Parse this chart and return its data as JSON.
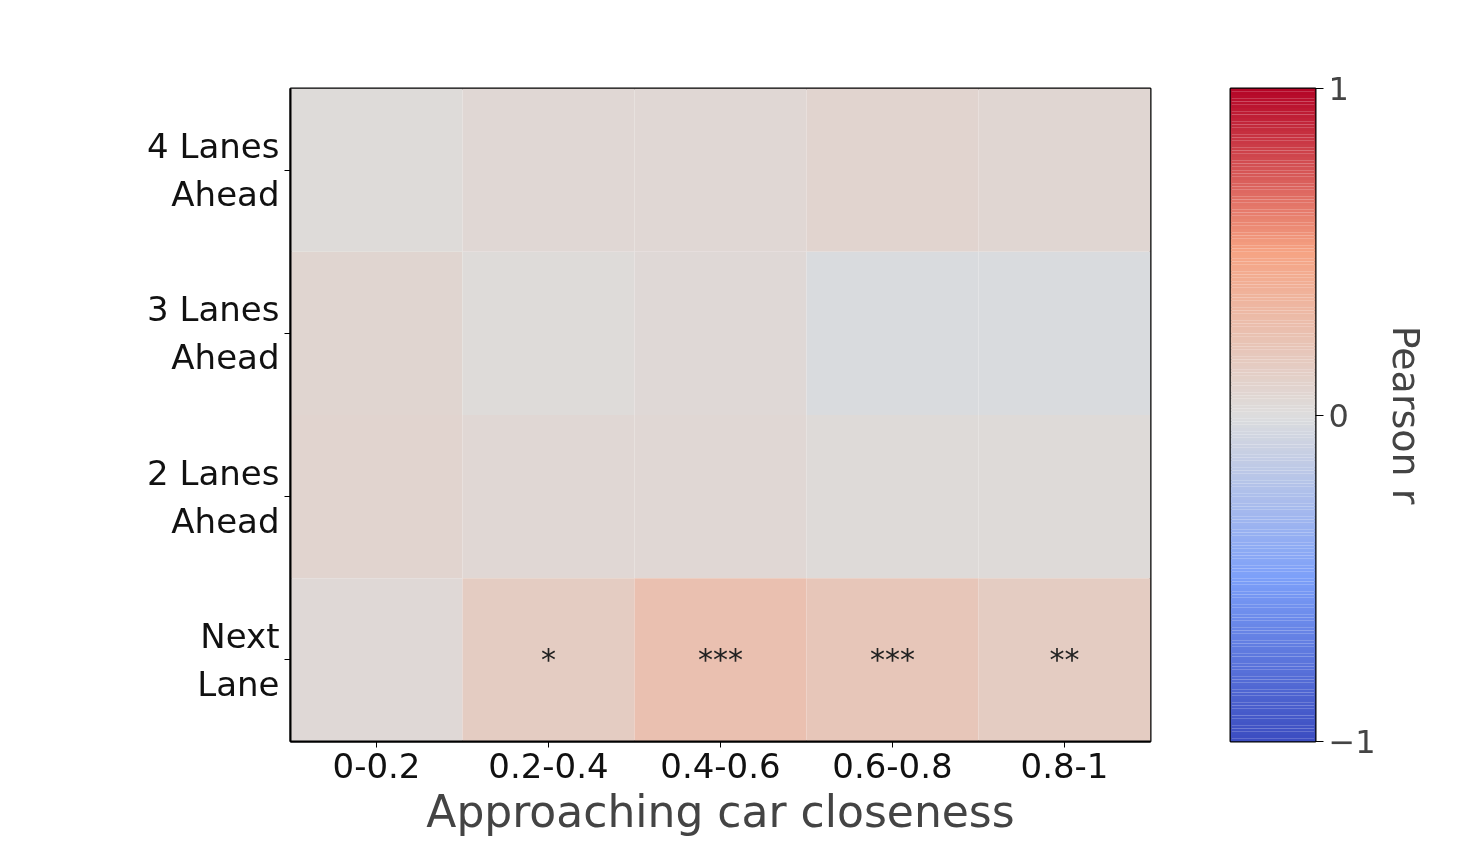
{
  "chart_data": {
    "type": "heatmap",
    "xlabel": "Approaching car closeness",
    "clabel": "Pearson r",
    "categories": [
      "0-0.2",
      "0.2-0.4",
      "0.4-0.6",
      "0.6-0.8",
      "0.8-1"
    ],
    "y_categories": [
      "4 Lanes\nAhead",
      "3 Lanes\nAhead",
      "2 Lanes\nAhead",
      "Next\nLane"
    ],
    "cells": [
      [
        0.02,
        0.05,
        0.05,
        0.08,
        0.06
      ],
      [
        0.07,
        0.02,
        0.04,
        -0.02,
        -0.02
      ],
      [
        0.08,
        0.05,
        0.05,
        0.03,
        0.03
      ],
      [
        0.04,
        0.15,
        0.25,
        0.2,
        0.15
      ]
    ],
    "cell_labels": [
      [
        null,
        null,
        null,
        null,
        null
      ],
      [
        null,
        null,
        null,
        null,
        null
      ],
      [
        null,
        null,
        null,
        null,
        null
      ],
      [
        null,
        "*",
        "***",
        "***",
        "**"
      ]
    ],
    "clim": [
      -1,
      1
    ],
    "cticks": [
      {
        "value": -1,
        "label": "−1"
      },
      0,
      1
    ]
  }
}
